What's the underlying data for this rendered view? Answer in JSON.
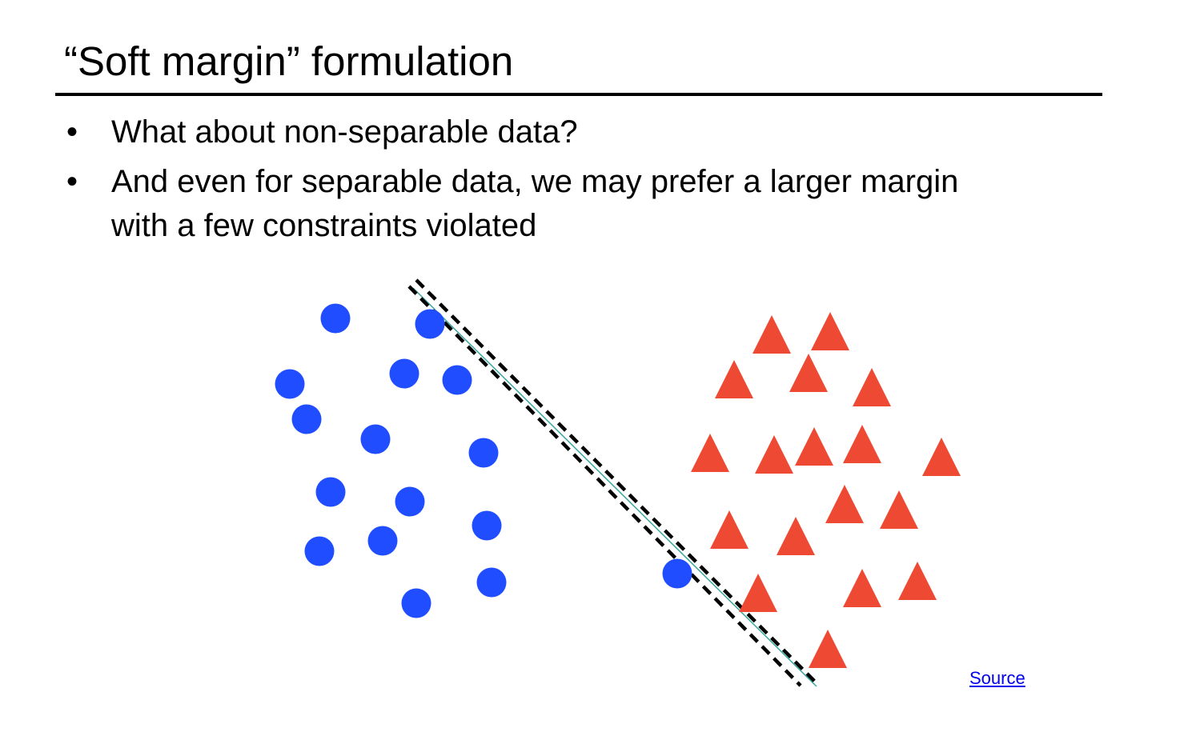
{
  "slide": {
    "title": "“Soft margin” formulation",
    "bullets": [
      {
        "marker": "•",
        "lines": [
          "What about non-separable data?"
        ]
      },
      {
        "marker": "•",
        "lines": [
          "And even for separable data, we may prefer a larger margin",
          "with a few constraints violated"
        ]
      }
    ],
    "source_label": "Source"
  },
  "colors": {
    "circle_class": "#1f4dff",
    "triangle_class": "#ee4a33",
    "boundary": "#3aa6a0",
    "margin": "#000000",
    "link": "#0000ee"
  }
}
